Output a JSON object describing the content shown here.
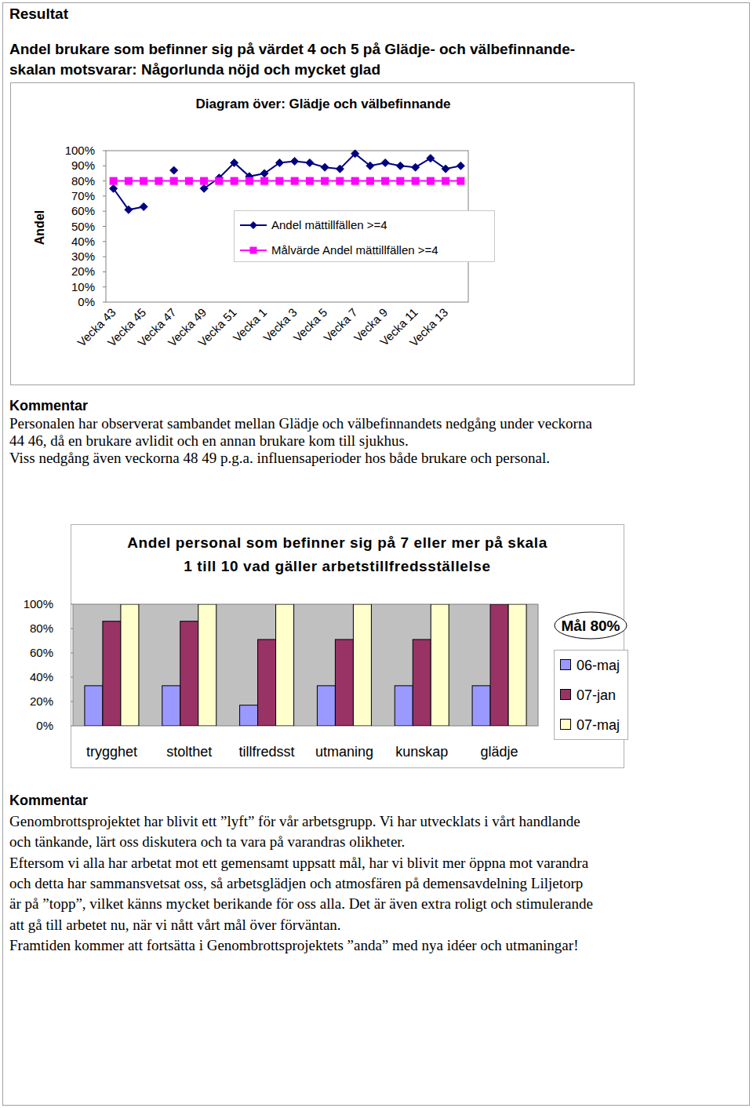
{
  "header": {
    "title": "Resultat",
    "heading_lines": [
      "Andel brukare som befinner sig på värdet 4 och 5 på Glädje- och välbefinnande-",
      "skalan motsvarar: Någorlunda nöjd och mycket glad"
    ]
  },
  "chart_data": [
    {
      "type": "line",
      "title": "Diagram över: Glädje och välbefinnande",
      "y_label": "Andel",
      "categories": [
        "Vecka 43",
        null,
        "Vecka 45",
        null,
        "Vecka 47",
        null,
        "Vecka 49",
        null,
        "Vecka 51",
        null,
        "Vecka 1",
        null,
        "Vecka 3",
        null,
        "Vecka 5",
        null,
        "Vecka 7",
        null,
        "Vecka 9",
        null,
        "Vecka 11",
        null,
        "Vecka 13",
        null
      ],
      "series": [
        {
          "name": "Andel mättillfällen >=4",
          "color": "#000080",
          "marker": "diamond",
          "values": [
            75,
            61,
            63,
            null,
            87,
            null,
            75,
            82,
            92,
            83,
            85,
            92,
            93,
            92,
            89,
            88,
            98,
            90,
            92,
            90,
            89,
            95,
            88,
            90
          ]
        },
        {
          "name": "Målvärde Andel mättillfällen >=4",
          "color": "#ff00ff",
          "marker": "square",
          "values": [
            80,
            80,
            80,
            80,
            80,
            80,
            80,
            80,
            80,
            80,
            80,
            80,
            80,
            80,
            80,
            80,
            80,
            80,
            80,
            80,
            80,
            80,
            80,
            80
          ]
        }
      ],
      "ylim": [
        0,
        100
      ],
      "yticks": [
        {
          "value": 0,
          "label": "0%"
        },
        {
          "value": 10,
          "label": "10%"
        },
        {
          "value": 20,
          "label": "20%"
        },
        {
          "value": 30,
          "label": "30%"
        },
        {
          "value": 40,
          "label": "40%"
        },
        {
          "value": 50,
          "label": "50%"
        },
        {
          "value": 60,
          "label": "60%"
        },
        {
          "value": 70,
          "label": "70%"
        },
        {
          "value": 80,
          "label": "80%"
        },
        {
          "value": 90,
          "label": "90%"
        },
        {
          "value": 100,
          "label": "100%"
        }
      ],
      "grid": false,
      "legend": "right"
    },
    {
      "type": "bar",
      "title_lines": [
        "Andel personal som befinner sig på 7 eller mer på skala",
        "1 till 10 vad gäller arbetstillfredsställelse"
      ],
      "annotation": "Mål 80%",
      "categories": [
        "trygghet",
        "stolthet",
        "tillfredsst",
        "utmaning",
        "kunskap",
        "glädje"
      ],
      "series": [
        {
          "name": "06-maj",
          "color": "#9999ff",
          "values": [
            33,
            33,
            17,
            33,
            33,
            33
          ]
        },
        {
          "name": "07-jan",
          "color": "#993366",
          "values": [
            86,
            86,
            71,
            71,
            71,
            100
          ]
        },
        {
          "name": "07-maj",
          "color": "#ffffcc",
          "values": [
            100,
            100,
            100,
            100,
            100,
            100
          ]
        }
      ],
      "ylim": [
        0,
        100
      ],
      "yticks": [
        {
          "value": 0,
          "label": "0%"
        },
        {
          "value": 20,
          "label": "20%"
        },
        {
          "value": 40,
          "label": "40%"
        },
        {
          "value": 60,
          "label": "60%"
        },
        {
          "value": 80,
          "label": "80%"
        },
        {
          "value": 100,
          "label": "100%"
        }
      ],
      "grid": false,
      "legend": "right"
    }
  ],
  "comments": [
    {
      "heading": "Kommentar",
      "lines": [
        "Personalen har observerat sambandet mellan Glädje och välbefinnandets nedgång under veckorna",
        "44 46, då en brukare avlidit och en annan brukare kom till sjukhus.",
        "Viss nedgång även veckorna 48 49 p.g.a. influensaperioder hos både brukare och personal."
      ]
    },
    {
      "heading": "Kommentar",
      "lines": [
        "Genombrottsprojektet har blivit ett ”lyft” för vår arbetsgrupp. Vi har utvecklats i vårt handlande",
        "och tänkande, lärt oss diskutera och ta vara på varandras olikheter.",
        "Eftersom vi alla har arbetat mot ett gemensamt uppsatt mål, har vi blivit mer öppna mot varandra",
        "och detta har sammansvetsat oss, så arbetsglädjen och atmosfären på demensavdelning Liljetorp",
        "är på ”topp”, vilket känns mycket berikande för oss alla. Det är även extra roligt och stimulerande",
        "att gå till arbetet nu, när vi nått vårt mål över förväntan.",
        "Framtiden kommer att fortsätta i Genombrottsprojektets ”anda” med nya idéer och utmaningar!"
      ]
    }
  ]
}
